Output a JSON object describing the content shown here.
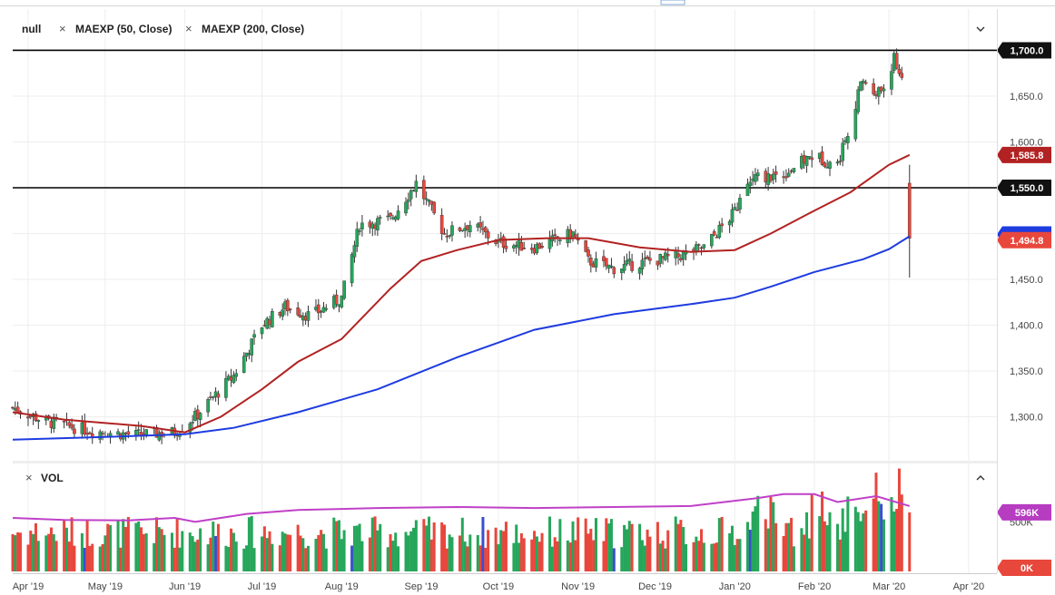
{
  "legend_main": {
    "symbol": "null",
    "ma50": "MAEXP (50, Close)",
    "ma200": "MAEXP (200, Close)",
    "close_glyph": "×"
  },
  "legend_vol": {
    "label": "VOL",
    "close_glyph": "×"
  },
  "colors": {
    "up": "#26a65b",
    "down": "#e8473c",
    "ma50": "#b22222",
    "ma200": "#1e3ce0",
    "vol_ma": "#c040c8",
    "vol_blue": "#3a4fd0",
    "price_tag": "#e8473c",
    "ma50_tag": "#b22222",
    "ma200_tag": "#1e3ce0",
    "vol_tag": "#b63cc0"
  },
  "icons": {
    "main_collapse": "chevron-down-icon",
    "vol_collapse": "chevron-up-icon"
  },
  "chart_data": [
    {
      "type": "candlestick",
      "title": "",
      "y_ticks": [
        "1,300.0",
        "1,350.0",
        "1,400.0",
        "1,450.0",
        "1,500.0",
        "1,550.0",
        "1,600.0",
        "1,650.0",
        "1,700.0"
      ],
      "y_tick_values": [
        1300,
        1350,
        1400,
        1450,
        1500,
        1550,
        1600,
        1650,
        1700
      ],
      "ylim": [
        1255,
        1745
      ],
      "x_ticks": [
        "Apr '19",
        "May '19",
        "Jun '19",
        "Jul '19",
        "Aug '19",
        "Sep '19",
        "Oct '19",
        "Nov '19",
        "Dec '19",
        "Jan '20",
        "Feb '20",
        "Mar '20",
        "Apr '20"
      ],
      "x_tick_dates": [
        "2019-04-01",
        "2019-05-01",
        "2019-06-01",
        "2019-07-01",
        "2019-08-01",
        "2019-09-01",
        "2019-10-01",
        "2019-11-01",
        "2019-12-01",
        "2020-01-01",
        "2020-02-01",
        "2020-03-01",
        "2020-04-01"
      ],
      "x_range": [
        "2019-03-26",
        "2020-04-12"
      ],
      "horizontal_lines": [
        {
          "value": 1700,
          "label": "1,700.0"
        },
        {
          "value": 1550,
          "label": "1,550.0"
        }
      ],
      "price_tags": [
        {
          "name": "ma50",
          "value": 1585.8,
          "label": "1,585.8"
        },
        {
          "name": "last",
          "value": 1494.8,
          "label": "1,494.8"
        },
        {
          "name": "ma200",
          "value": 1497,
          "label": ""
        }
      ],
      "ohlc_anchor_dates": [
        "2019-03-26",
        "2019-04-08",
        "2019-04-25",
        "2019-05-13",
        "2019-05-28",
        "2019-06-05",
        "2019-06-20",
        "2019-07-01",
        "2019-07-10",
        "2019-07-20",
        "2019-08-01",
        "2019-08-08",
        "2019-08-20",
        "2019-08-30",
        "2019-09-10",
        "2019-09-20",
        "2019-10-01",
        "2019-10-15",
        "2019-10-30",
        "2019-11-05",
        "2019-11-15",
        "2019-11-29",
        "2019-12-10",
        "2019-12-20",
        "2019-12-31",
        "2020-01-08",
        "2020-01-20",
        "2020-01-31",
        "2020-02-10",
        "2020-02-20",
        "2020-02-24",
        "2020-02-28",
        "2020-03-03",
        "2020-03-06",
        "2020-03-09"
      ],
      "close_anchors": [
        1310,
        1295,
        1285,
        1280,
        1283,
        1300,
        1345,
        1400,
        1420,
        1410,
        1430,
        1510,
        1515,
        1555,
        1500,
        1510,
        1490,
        1485,
        1500,
        1470,
        1462,
        1470,
        1475,
        1485,
        1520,
        1560,
        1565,
        1585,
        1575,
        1670,
        1650,
        1660,
        1690,
        1670,
        1494.8
      ],
      "ma50": [
        {
          "date": "2019-03-26",
          "value": 1305
        },
        {
          "date": "2019-04-15",
          "value": 1297
        },
        {
          "date": "2019-05-15",
          "value": 1290
        },
        {
          "date": "2019-06-01",
          "value": 1283
        },
        {
          "date": "2019-06-15",
          "value": 1300
        },
        {
          "date": "2019-07-01",
          "value": 1330
        },
        {
          "date": "2019-07-15",
          "value": 1360
        },
        {
          "date": "2019-08-01",
          "value": 1385
        },
        {
          "date": "2019-08-20",
          "value": 1440
        },
        {
          "date": "2019-09-01",
          "value": 1470
        },
        {
          "date": "2019-09-15",
          "value": 1482
        },
        {
          "date": "2019-10-01",
          "value": 1493
        },
        {
          "date": "2019-10-20",
          "value": 1495
        },
        {
          "date": "2019-11-05",
          "value": 1495
        },
        {
          "date": "2019-11-25",
          "value": 1485
        },
        {
          "date": "2019-12-15",
          "value": 1480
        },
        {
          "date": "2020-01-01",
          "value": 1482
        },
        {
          "date": "2020-01-15",
          "value": 1500
        },
        {
          "date": "2020-02-01",
          "value": 1525
        },
        {
          "date": "2020-02-15",
          "value": 1545
        },
        {
          "date": "2020-03-01",
          "value": 1575
        },
        {
          "date": "2020-03-09",
          "value": 1585.8
        }
      ],
      "ma200": [
        {
          "date": "2019-03-26",
          "value": 1275
        },
        {
          "date": "2019-05-01",
          "value": 1278
        },
        {
          "date": "2019-06-01",
          "value": 1281
        },
        {
          "date": "2019-06-20",
          "value": 1288
        },
        {
          "date": "2019-07-15",
          "value": 1305
        },
        {
          "date": "2019-08-15",
          "value": 1330
        },
        {
          "date": "2019-09-15",
          "value": 1365
        },
        {
          "date": "2019-10-15",
          "value": 1395
        },
        {
          "date": "2019-11-15",
          "value": 1412
        },
        {
          "date": "2019-12-15",
          "value": 1423
        },
        {
          "date": "2020-01-01",
          "value": 1430
        },
        {
          "date": "2020-01-15",
          "value": 1442
        },
        {
          "date": "2020-02-01",
          "value": 1458
        },
        {
          "date": "2020-02-20",
          "value": 1472
        },
        {
          "date": "2020-03-01",
          "value": 1483
        },
        {
          "date": "2020-03-09",
          "value": 1497
        }
      ]
    },
    {
      "type": "bar",
      "title": "VOL",
      "y_ticks": [
        "0K",
        "500K"
      ],
      "y_tick_values": [
        0,
        500000
      ],
      "ylim": [
        0,
        1080000
      ],
      "last_volume_tag": {
        "value": 596000,
        "label": "596K"
      },
      "volume_ma": [
        {
          "date": "2019-03-26",
          "value": 540000
        },
        {
          "date": "2019-04-15",
          "value": 520000
        },
        {
          "date": "2019-05-10",
          "value": 515000
        },
        {
          "date": "2019-05-28",
          "value": 540000
        },
        {
          "date": "2019-06-05",
          "value": 500000
        },
        {
          "date": "2019-06-25",
          "value": 580000
        },
        {
          "date": "2019-07-15",
          "value": 620000
        },
        {
          "date": "2019-08-15",
          "value": 640000
        },
        {
          "date": "2019-09-15",
          "value": 650000
        },
        {
          "date": "2019-10-15",
          "value": 640000
        },
        {
          "date": "2019-11-15",
          "value": 650000
        },
        {
          "date": "2019-12-15",
          "value": 660000
        },
        {
          "date": "2020-01-10",
          "value": 740000
        },
        {
          "date": "2020-01-20",
          "value": 780000
        },
        {
          "date": "2020-02-01",
          "value": 780000
        },
        {
          "date": "2020-02-10",
          "value": 700000
        },
        {
          "date": "2020-02-25",
          "value": 760000
        },
        {
          "date": "2020-03-09",
          "value": 660000
        }
      ]
    }
  ]
}
